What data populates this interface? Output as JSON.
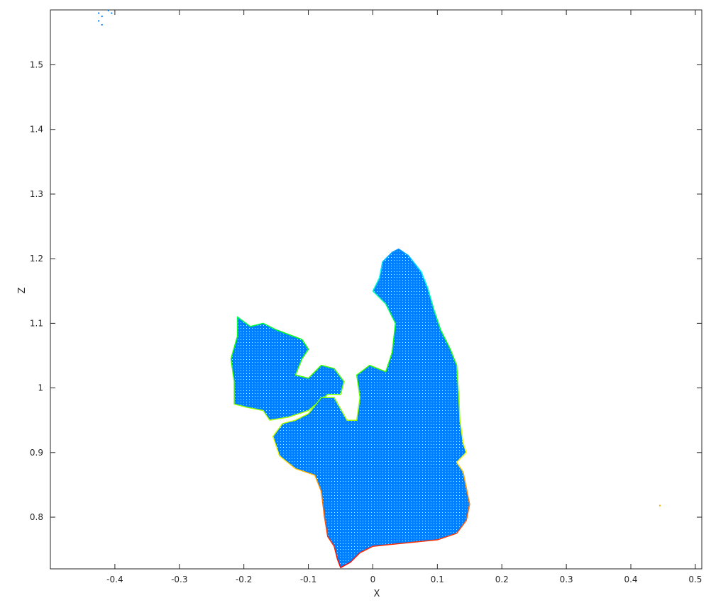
{
  "chart_data": {
    "type": "scatter",
    "title": "",
    "xlabel": "X",
    "ylabel": "Z",
    "xlim": [
      -0.5,
      0.51
    ],
    "ylim": [
      0.72,
      1.585
    ],
    "xticks": [
      -0.4,
      -0.3,
      -0.2,
      -0.1,
      0,
      0.1,
      0.2,
      0.3,
      0.4,
      0.5
    ],
    "xtick_labels": [
      "-0.4",
      "-0.3",
      "-0.2",
      "-0.1",
      "0",
      "0.1",
      "0.2",
      "0.3",
      "0.4",
      "0.5"
    ],
    "yticks": [
      0.8,
      0.9,
      1.0,
      1.1,
      1.2,
      1.3,
      1.4,
      1.5
    ],
    "ytick_labels": [
      "0.8",
      "0.9",
      "1",
      "1.1",
      "1.2",
      "1.3",
      "1.4",
      "1.5"
    ],
    "grid": false,
    "legend": "none",
    "colormap": "hsv-by-z",
    "colormap_range": [
      0.72,
      1.22
    ],
    "cloud_outline": [
      [
        0.04,
        1.215
      ],
      [
        0.055,
        1.205
      ],
      [
        0.075,
        1.18
      ],
      [
        0.085,
        1.155
      ],
      [
        0.095,
        1.12
      ],
      [
        0.105,
        1.09
      ],
      [
        0.12,
        1.06
      ],
      [
        0.13,
        1.035
      ],
      [
        0.133,
        0.99
      ],
      [
        0.135,
        0.95
      ],
      [
        0.14,
        0.915
      ],
      [
        0.145,
        0.9
      ],
      [
        0.13,
        0.885
      ],
      [
        0.14,
        0.87
      ],
      [
        0.15,
        0.82
      ],
      [
        0.145,
        0.795
      ],
      [
        0.13,
        0.775
      ],
      [
        0.1,
        0.765
      ],
      [
        0.05,
        0.76
      ],
      [
        0.0,
        0.755
      ],
      [
        -0.02,
        0.745
      ],
      [
        -0.035,
        0.73
      ],
      [
        -0.05,
        0.722
      ],
      [
        -0.055,
        0.735
      ],
      [
        -0.06,
        0.755
      ],
      [
        -0.07,
        0.77
      ],
      [
        -0.075,
        0.8
      ],
      [
        -0.08,
        0.84
      ],
      [
        -0.09,
        0.865
      ],
      [
        -0.12,
        0.875
      ],
      [
        -0.145,
        0.895
      ],
      [
        -0.155,
        0.925
      ],
      [
        -0.14,
        0.945
      ],
      [
        -0.12,
        0.95
      ],
      [
        -0.1,
        0.96
      ],
      [
        -0.08,
        0.985
      ],
      [
        -0.06,
        0.985
      ],
      [
        -0.04,
        0.95
      ],
      [
        -0.025,
        0.95
      ],
      [
        -0.02,
        0.985
      ],
      [
        -0.025,
        1.02
      ],
      [
        -0.005,
        1.035
      ],
      [
        0.02,
        1.025
      ],
      [
        0.03,
        1.055
      ],
      [
        0.035,
        1.1
      ],
      [
        0.02,
        1.13
      ],
      [
        0.0,
        1.15
      ],
      [
        0.01,
        1.17
      ],
      [
        0.015,
        1.195
      ],
      [
        0.03,
        1.21
      ]
    ],
    "left_cluster_outline": [
      [
        -0.21,
        1.11
      ],
      [
        -0.19,
        1.095
      ],
      [
        -0.17,
        1.1
      ],
      [
        -0.15,
        1.09
      ],
      [
        -0.11,
        1.075
      ],
      [
        -0.1,
        1.06
      ],
      [
        -0.11,
        1.045
      ],
      [
        -0.12,
        1.02
      ],
      [
        -0.1,
        1.015
      ],
      [
        -0.08,
        1.035
      ],
      [
        -0.06,
        1.03
      ],
      [
        -0.045,
        1.01
      ],
      [
        -0.05,
        0.99
      ],
      [
        -0.07,
        0.99
      ],
      [
        -0.1,
        0.965
      ],
      [
        -0.13,
        0.955
      ],
      [
        -0.16,
        0.95
      ],
      [
        -0.17,
        0.965
      ],
      [
        -0.195,
        0.97
      ],
      [
        -0.215,
        0.975
      ],
      [
        -0.215,
        1.01
      ],
      [
        -0.22,
        1.045
      ],
      [
        -0.21,
        1.08
      ]
    ],
    "outlier_points": [
      {
        "x": -0.425,
        "z": 1.58
      },
      {
        "x": -0.42,
        "z": 1.575
      },
      {
        "x": -0.425,
        "z": 1.568
      },
      {
        "x": -0.42,
        "z": 1.562
      },
      {
        "x": -0.405,
        "z": 1.58
      },
      {
        "x": -0.41,
        "z": 1.584
      },
      {
        "x": 0.445,
        "z": 0.818
      }
    ]
  }
}
